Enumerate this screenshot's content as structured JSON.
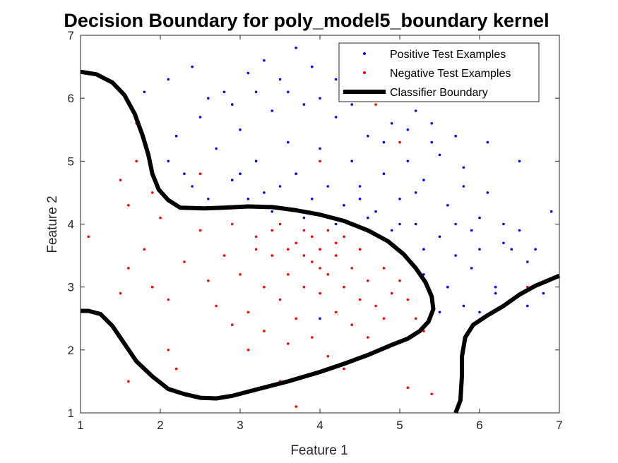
{
  "chart_data": {
    "type": "scatter",
    "title": "Decision Boundary for poly_model5_boundary kernel",
    "xlabel": "Feature 1",
    "ylabel": "Feature 2",
    "xlim": [
      1,
      7
    ],
    "ylim": [
      1,
      7
    ],
    "xticks": [
      "1",
      "2",
      "3",
      "4",
      "5",
      "6",
      "7"
    ],
    "yticks": [
      "1",
      "2",
      "3",
      "4",
      "5",
      "6",
      "7"
    ],
    "grid": false,
    "legend_position": "top-right",
    "colors": {
      "positive": "#0000ff",
      "negative": "#ff0000",
      "boundary": "#000000",
      "axes": "#262626"
    },
    "series": [
      {
        "name": "Positive Test Examples",
        "marker": "dot",
        "color": "#0000ff",
        "points": [
          [
            2.1,
            6.3
          ],
          [
            2.4,
            6.5
          ],
          [
            2.6,
            6.0
          ],
          [
            2.8,
            6.1
          ],
          [
            3.1,
            6.4
          ],
          [
            3.3,
            6.6
          ],
          [
            3.5,
            6.3
          ],
          [
            3.7,
            6.8
          ],
          [
            3.9,
            6.5
          ],
          [
            4.2,
            6.3
          ],
          [
            4.5,
            6.6
          ],
          [
            4.7,
            6.2
          ],
          [
            4.9,
            6.0
          ],
          [
            5.2,
            5.8
          ],
          [
            5.4,
            5.6
          ],
          [
            5.7,
            5.4
          ],
          [
            6.1,
            5.3
          ],
          [
            6.5,
            5.0
          ],
          [
            6.9,
            4.2
          ],
          [
            6.4,
            3.6
          ],
          [
            2.2,
            5.4
          ],
          [
            2.3,
            4.8
          ],
          [
            2.5,
            5.7
          ],
          [
            2.7,
            5.2
          ],
          [
            2.9,
            4.7
          ],
          [
            3.0,
            5.5
          ],
          [
            3.2,
            5.0
          ],
          [
            3.4,
            5.8
          ],
          [
            3.3,
            4.5
          ],
          [
            3.6,
            5.3
          ],
          [
            3.7,
            4.8
          ],
          [
            3.8,
            5.9
          ],
          [
            4.0,
            5.2
          ],
          [
            4.1,
            4.6
          ],
          [
            4.2,
            5.7
          ],
          [
            4.3,
            4.3
          ],
          [
            4.4,
            5.0
          ],
          [
            4.5,
            4.6
          ],
          [
            4.6,
            5.4
          ],
          [
            4.7,
            4.2
          ],
          [
            4.8,
            4.8
          ],
          [
            4.9,
            5.6
          ],
          [
            5.0,
            4.4
          ],
          [
            5.1,
            5.0
          ],
          [
            5.2,
            4.0
          ],
          [
            5.3,
            4.7
          ],
          [
            5.4,
            5.3
          ],
          [
            5.5,
            3.8
          ],
          [
            5.6,
            4.3
          ],
          [
            5.7,
            3.5
          ],
          [
            5.8,
            4.6
          ],
          [
            5.9,
            3.3
          ],
          [
            6.0,
            4.1
          ],
          [
            6.2,
            3.0
          ],
          [
            6.3,
            3.7
          ],
          [
            6.6,
            3.4
          ],
          [
            6.8,
            2.9
          ],
          [
            5.3,
            3.2
          ],
          [
            5.4,
            2.8
          ],
          [
            5.6,
            3.0
          ],
          [
            5.8,
            2.7
          ],
          [
            6.0,
            2.6
          ],
          [
            6.2,
            2.9
          ],
          [
            6.4,
            2.8
          ],
          [
            6.6,
            2.7
          ],
          [
            6.7,
            3.6
          ],
          [
            5.5,
            2.6
          ],
          [
            5.3,
            3.6
          ],
          [
            4.9,
            3.9
          ],
          [
            4.6,
            4.1
          ],
          [
            3.9,
            4.4
          ],
          [
            3.5,
            4.6
          ],
          [
            3.1,
            4.4
          ],
          [
            2.6,
            4.4
          ],
          [
            2.4,
            4.6
          ],
          [
            2.9,
            5.9
          ],
          [
            3.2,
            6.1
          ],
          [
            3.6,
            6.1
          ],
          [
            4.0,
            6.0
          ],
          [
            4.4,
            5.9
          ],
          [
            4.8,
            5.3
          ],
          [
            5.1,
            5.5
          ],
          [
            5.5,
            5.1
          ],
          [
            5.8,
            4.9
          ],
          [
            6.1,
            4.5
          ],
          [
            6.3,
            4.0
          ],
          [
            6.5,
            3.9
          ],
          [
            6.0,
            3.6
          ],
          [
            5.9,
            3.9
          ],
          [
            5.7,
            4.0
          ],
          [
            4.0,
            2.5
          ],
          [
            1.8,
            6.1
          ],
          [
            2.1,
            5.0
          ],
          [
            3.0,
            4.8
          ],
          [
            3.4,
            4.2
          ],
          [
            3.8,
            4.1
          ],
          [
            4.2,
            4.0
          ],
          [
            4.5,
            4.4
          ],
          [
            5.0,
            4.0
          ],
          [
            5.2,
            4.5
          ]
        ]
      },
      {
        "name": "Negative Test Examples",
        "marker": "dot",
        "color": "#ff0000",
        "points": [
          [
            1.1,
            3.8
          ],
          [
            1.5,
            4.7
          ],
          [
            1.6,
            4.3
          ],
          [
            1.7,
            5.0
          ],
          [
            1.7,
            5.6
          ],
          [
            1.9,
            4.5
          ],
          [
            2.0,
            4.1
          ],
          [
            1.8,
            3.6
          ],
          [
            1.6,
            3.3
          ],
          [
            1.9,
            3.0
          ],
          [
            2.1,
            2.8
          ],
          [
            2.3,
            3.4
          ],
          [
            2.5,
            3.9
          ],
          [
            2.6,
            3.1
          ],
          [
            2.8,
            3.5
          ],
          [
            2.7,
            2.7
          ],
          [
            2.9,
            4.0
          ],
          [
            3.0,
            3.2
          ],
          [
            3.1,
            2.6
          ],
          [
            3.2,
            3.8
          ],
          [
            3.3,
            3.0
          ],
          [
            3.3,
            2.3
          ],
          [
            3.4,
            3.5
          ],
          [
            3.5,
            4.0
          ],
          [
            3.5,
            2.8
          ],
          [
            3.6,
            3.2
          ],
          [
            3.6,
            2.1
          ],
          [
            3.7,
            3.7
          ],
          [
            3.7,
            2.5
          ],
          [
            3.8,
            3.0
          ],
          [
            3.8,
            3.9
          ],
          [
            3.9,
            3.4
          ],
          [
            3.9,
            2.2
          ],
          [
            4.0,
            3.6
          ],
          [
            4.0,
            2.9
          ],
          [
            4.1,
            3.9
          ],
          [
            4.1,
            3.2
          ],
          [
            4.2,
            2.6
          ],
          [
            4.2,
            3.5
          ],
          [
            4.3,
            3.0
          ],
          [
            4.3,
            3.8
          ],
          [
            4.4,
            2.4
          ],
          [
            4.4,
            3.3
          ],
          [
            4.5,
            2.8
          ],
          [
            4.5,
            3.6
          ],
          [
            4.6,
            3.1
          ],
          [
            4.7,
            2.7
          ],
          [
            4.8,
            3.3
          ],
          [
            4.9,
            2.9
          ],
          [
            5.0,
            3.1
          ],
          [
            5.1,
            2.8
          ],
          [
            5.2,
            2.5
          ],
          [
            5.3,
            2.3
          ],
          [
            3.2,
            3.6
          ],
          [
            3.4,
            3.9
          ],
          [
            3.6,
            3.6
          ],
          [
            3.8,
            3.5
          ],
          [
            4.0,
            3.3
          ],
          [
            3.9,
            3.8
          ],
          [
            4.2,
            3.7
          ],
          [
            1.6,
            1.5
          ],
          [
            2.2,
            1.7
          ],
          [
            2.1,
            2.0
          ],
          [
            3.5,
            1.5
          ],
          [
            3.7,
            1.1
          ],
          [
            4.1,
            1.9
          ],
          [
            4.3,
            1.7
          ],
          [
            5.1,
            1.4
          ],
          [
            5.4,
            1.3
          ],
          [
            6.6,
            3.0
          ],
          [
            5.0,
            5.3
          ],
          [
            4.7,
            5.9
          ],
          [
            4.0,
            5.0
          ],
          [
            3.0,
            4.8
          ],
          [
            2.5,
            4.8
          ],
          [
            1.5,
            2.9
          ],
          [
            2.9,
            2.4
          ],
          [
            3.1,
            2.0
          ],
          [
            4.6,
            2.2
          ],
          [
            4.8,
            2.5
          ]
        ]
      },
      {
        "name": "Classifier Boundary",
        "marker": "line",
        "color": "#000000",
        "segments": [
          [
            [
              1.0,
              6.42
            ],
            [
              1.2,
              6.38
            ],
            [
              1.4,
              6.25
            ],
            [
              1.55,
              6.05
            ],
            [
              1.68,
              5.75
            ],
            [
              1.78,
              5.4
            ],
            [
              1.85,
              5.1
            ],
            [
              1.9,
              4.8
            ],
            [
              1.98,
              4.55
            ],
            [
              2.1,
              4.38
            ],
            [
              2.25,
              4.26
            ],
            [
              2.55,
              4.25
            ],
            [
              2.8,
              4.26
            ],
            [
              3.1,
              4.28
            ],
            [
              3.4,
              4.27
            ],
            [
              3.7,
              4.22
            ],
            [
              4.0,
              4.15
            ],
            [
              4.3,
              4.05
            ],
            [
              4.6,
              3.9
            ],
            [
              4.85,
              3.73
            ],
            [
              5.05,
              3.52
            ],
            [
              5.2,
              3.3
            ],
            [
              5.32,
              3.08
            ],
            [
              5.4,
              2.85
            ],
            [
              5.42,
              2.65
            ],
            [
              5.36,
              2.45
            ],
            [
              5.25,
              2.3
            ],
            [
              5.1,
              2.18
            ],
            [
              4.9,
              2.08
            ],
            [
              4.6,
              1.92
            ],
            [
              4.3,
              1.78
            ],
            [
              4.0,
              1.65
            ],
            [
              3.6,
              1.5
            ],
            [
              3.2,
              1.37
            ],
            [
              2.9,
              1.27
            ],
            [
              2.7,
              1.23
            ],
            [
              2.5,
              1.24
            ],
            [
              2.3,
              1.3
            ],
            [
              2.1,
              1.38
            ],
            [
              1.9,
              1.58
            ],
            [
              1.7,
              1.82
            ],
            [
              1.55,
              2.1
            ],
            [
              1.4,
              2.38
            ],
            [
              1.25,
              2.57
            ],
            [
              1.1,
              2.62
            ],
            [
              1.0,
              2.62
            ]
          ],
          [
            [
              5.7,
              1.0
            ],
            [
              5.76,
              1.2
            ],
            [
              5.78,
              1.6
            ],
            [
              5.78,
              1.9
            ],
            [
              5.82,
              2.2
            ],
            [
              5.92,
              2.4
            ],
            [
              6.1,
              2.55
            ],
            [
              6.3,
              2.7
            ],
            [
              6.5,
              2.88
            ],
            [
              6.7,
              3.02
            ],
            [
              6.85,
              3.1
            ],
            [
              7.0,
              3.18
            ]
          ]
        ]
      }
    ]
  }
}
